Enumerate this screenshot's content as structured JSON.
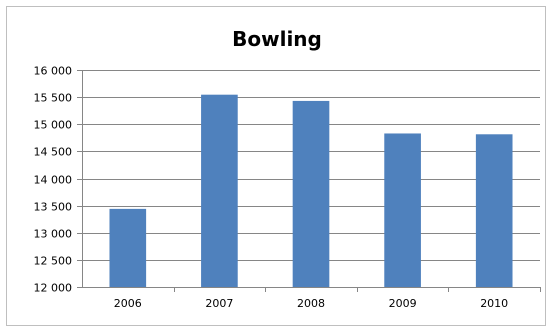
{
  "chart_data": {
    "type": "bar",
    "title": "Bowling",
    "xlabel": "",
    "ylabel": "",
    "categories": [
      "2006",
      "2007",
      "2008",
      "2009",
      "2010"
    ],
    "values": [
      13440,
      15545,
      15430,
      14830,
      14815
    ],
    "ylim": [
      12000,
      16000
    ],
    "yticks": [
      12000,
      12500,
      13000,
      13500,
      14000,
      14500,
      15000,
      15500,
      16000
    ],
    "ytick_labels": [
      "12 000",
      "12 500",
      "13 000",
      "13 500",
      "14 000",
      "14 500",
      "15 000",
      "15 500",
      "16 000"
    ],
    "grid": true,
    "legend": "none",
    "bar_color": "#4f81bd",
    "grid_color": "#868686"
  }
}
